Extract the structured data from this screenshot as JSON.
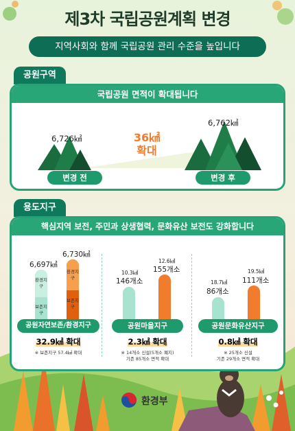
{
  "header": {
    "title": "제3차 국립공원계획 변경",
    "subtitle": "지역사회와 함께 국립공원 관리 수준을 높입니다"
  },
  "park_area": {
    "tab": "공원구역",
    "headline": "국립공원 면적이 확대됩니다",
    "before_value": "6,726㎢",
    "after_value": "6,762㎢",
    "increase_value": "36㎢",
    "increase_word": "확대",
    "before_label": "변경 전",
    "after_label": "변경 후"
  },
  "zoning": {
    "tab": "용도지구",
    "headline": "핵심지역 보전, 주민과 상생협력, 문화유산 보전도 강화합니다",
    "groups": [
      {
        "before_value": "6,697㎢",
        "after_value": "6,730㎢",
        "seg_top_before": "환경지구",
        "seg_bottom_before": "보존지구",
        "seg_top_after": "환경지구",
        "seg_bottom_after": "보존지구",
        "label": "공원자연보존/환경지구",
        "increase": "32.9㎢ 확대",
        "note1": "※ 보존지구 57.4㎢ 확대",
        "note2": ""
      },
      {
        "before_area": "10.3㎢",
        "before_count": "146개소",
        "after_area": "12.6㎢",
        "after_count": "155개소",
        "label": "공원마을지구",
        "increase": "2.3㎢ 확대",
        "note1": "※ 14개소 신설(5개소 폐지)",
        "note2": "기존 85개소 면적 확대"
      },
      {
        "before_area": "18.7㎢",
        "before_count": "86개소",
        "after_area": "19.5㎢",
        "after_count": "111개소",
        "label": "공원문화유산지구",
        "increase": "0.8㎢ 확대",
        "note1": "※ 25개소 신설",
        "note2": "기존 29개소 면적 확대"
      }
    ]
  },
  "footer": {
    "logo_text": "환경부"
  },
  "colors": {
    "dark_green": "#0f7a5b",
    "card_green": "#29a678",
    "orange": "#f27c2e",
    "mint": "#a8e3cf"
  }
}
